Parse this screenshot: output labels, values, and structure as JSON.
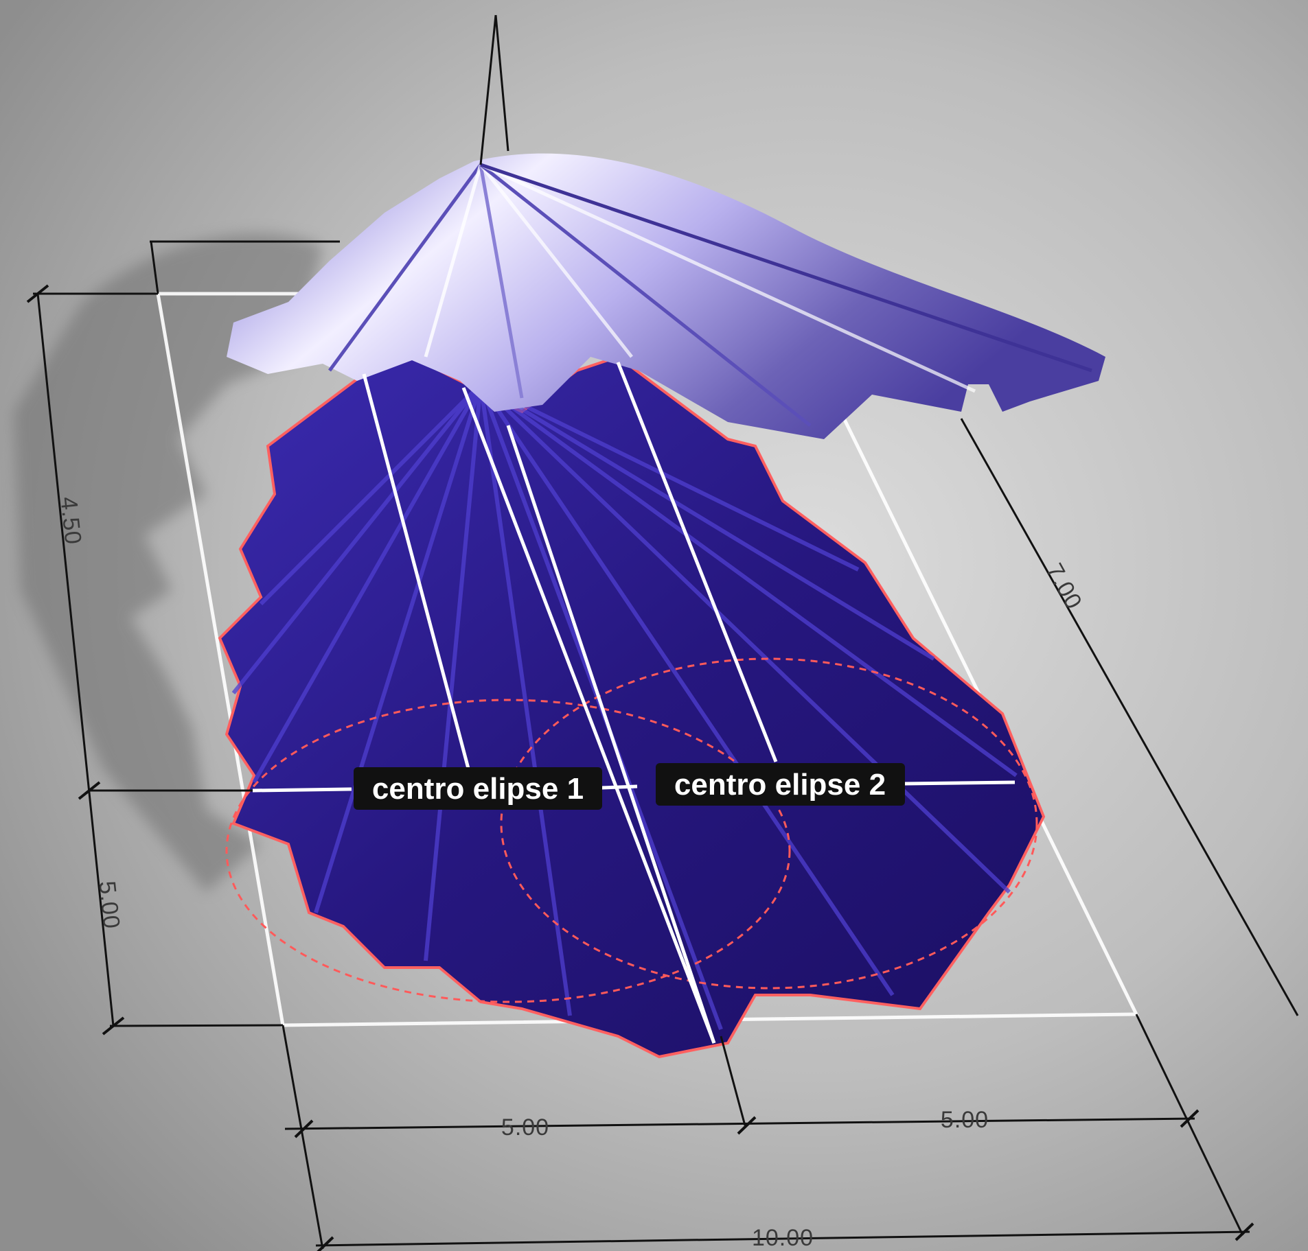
{
  "labels": {
    "centro_elipse_1": "centro elipse 1",
    "centro_elipse_2": "centro elipse 2"
  },
  "dimensions": {
    "left_upper": "4.50",
    "left_lower": "5.00",
    "right_long": "7.00",
    "bottom_half_left": "5.00",
    "bottom_half_right": "5.00",
    "bottom_total": "10.00"
  },
  "colors": {
    "background": "#a9a9a9",
    "shell_dark": "#2a1a8c",
    "shell_light": "#c9c3f2",
    "edge_red": "#ff5a5a",
    "guide_white": "#ffffff",
    "dimension_line": "#111111",
    "label_bg": "#111111"
  }
}
